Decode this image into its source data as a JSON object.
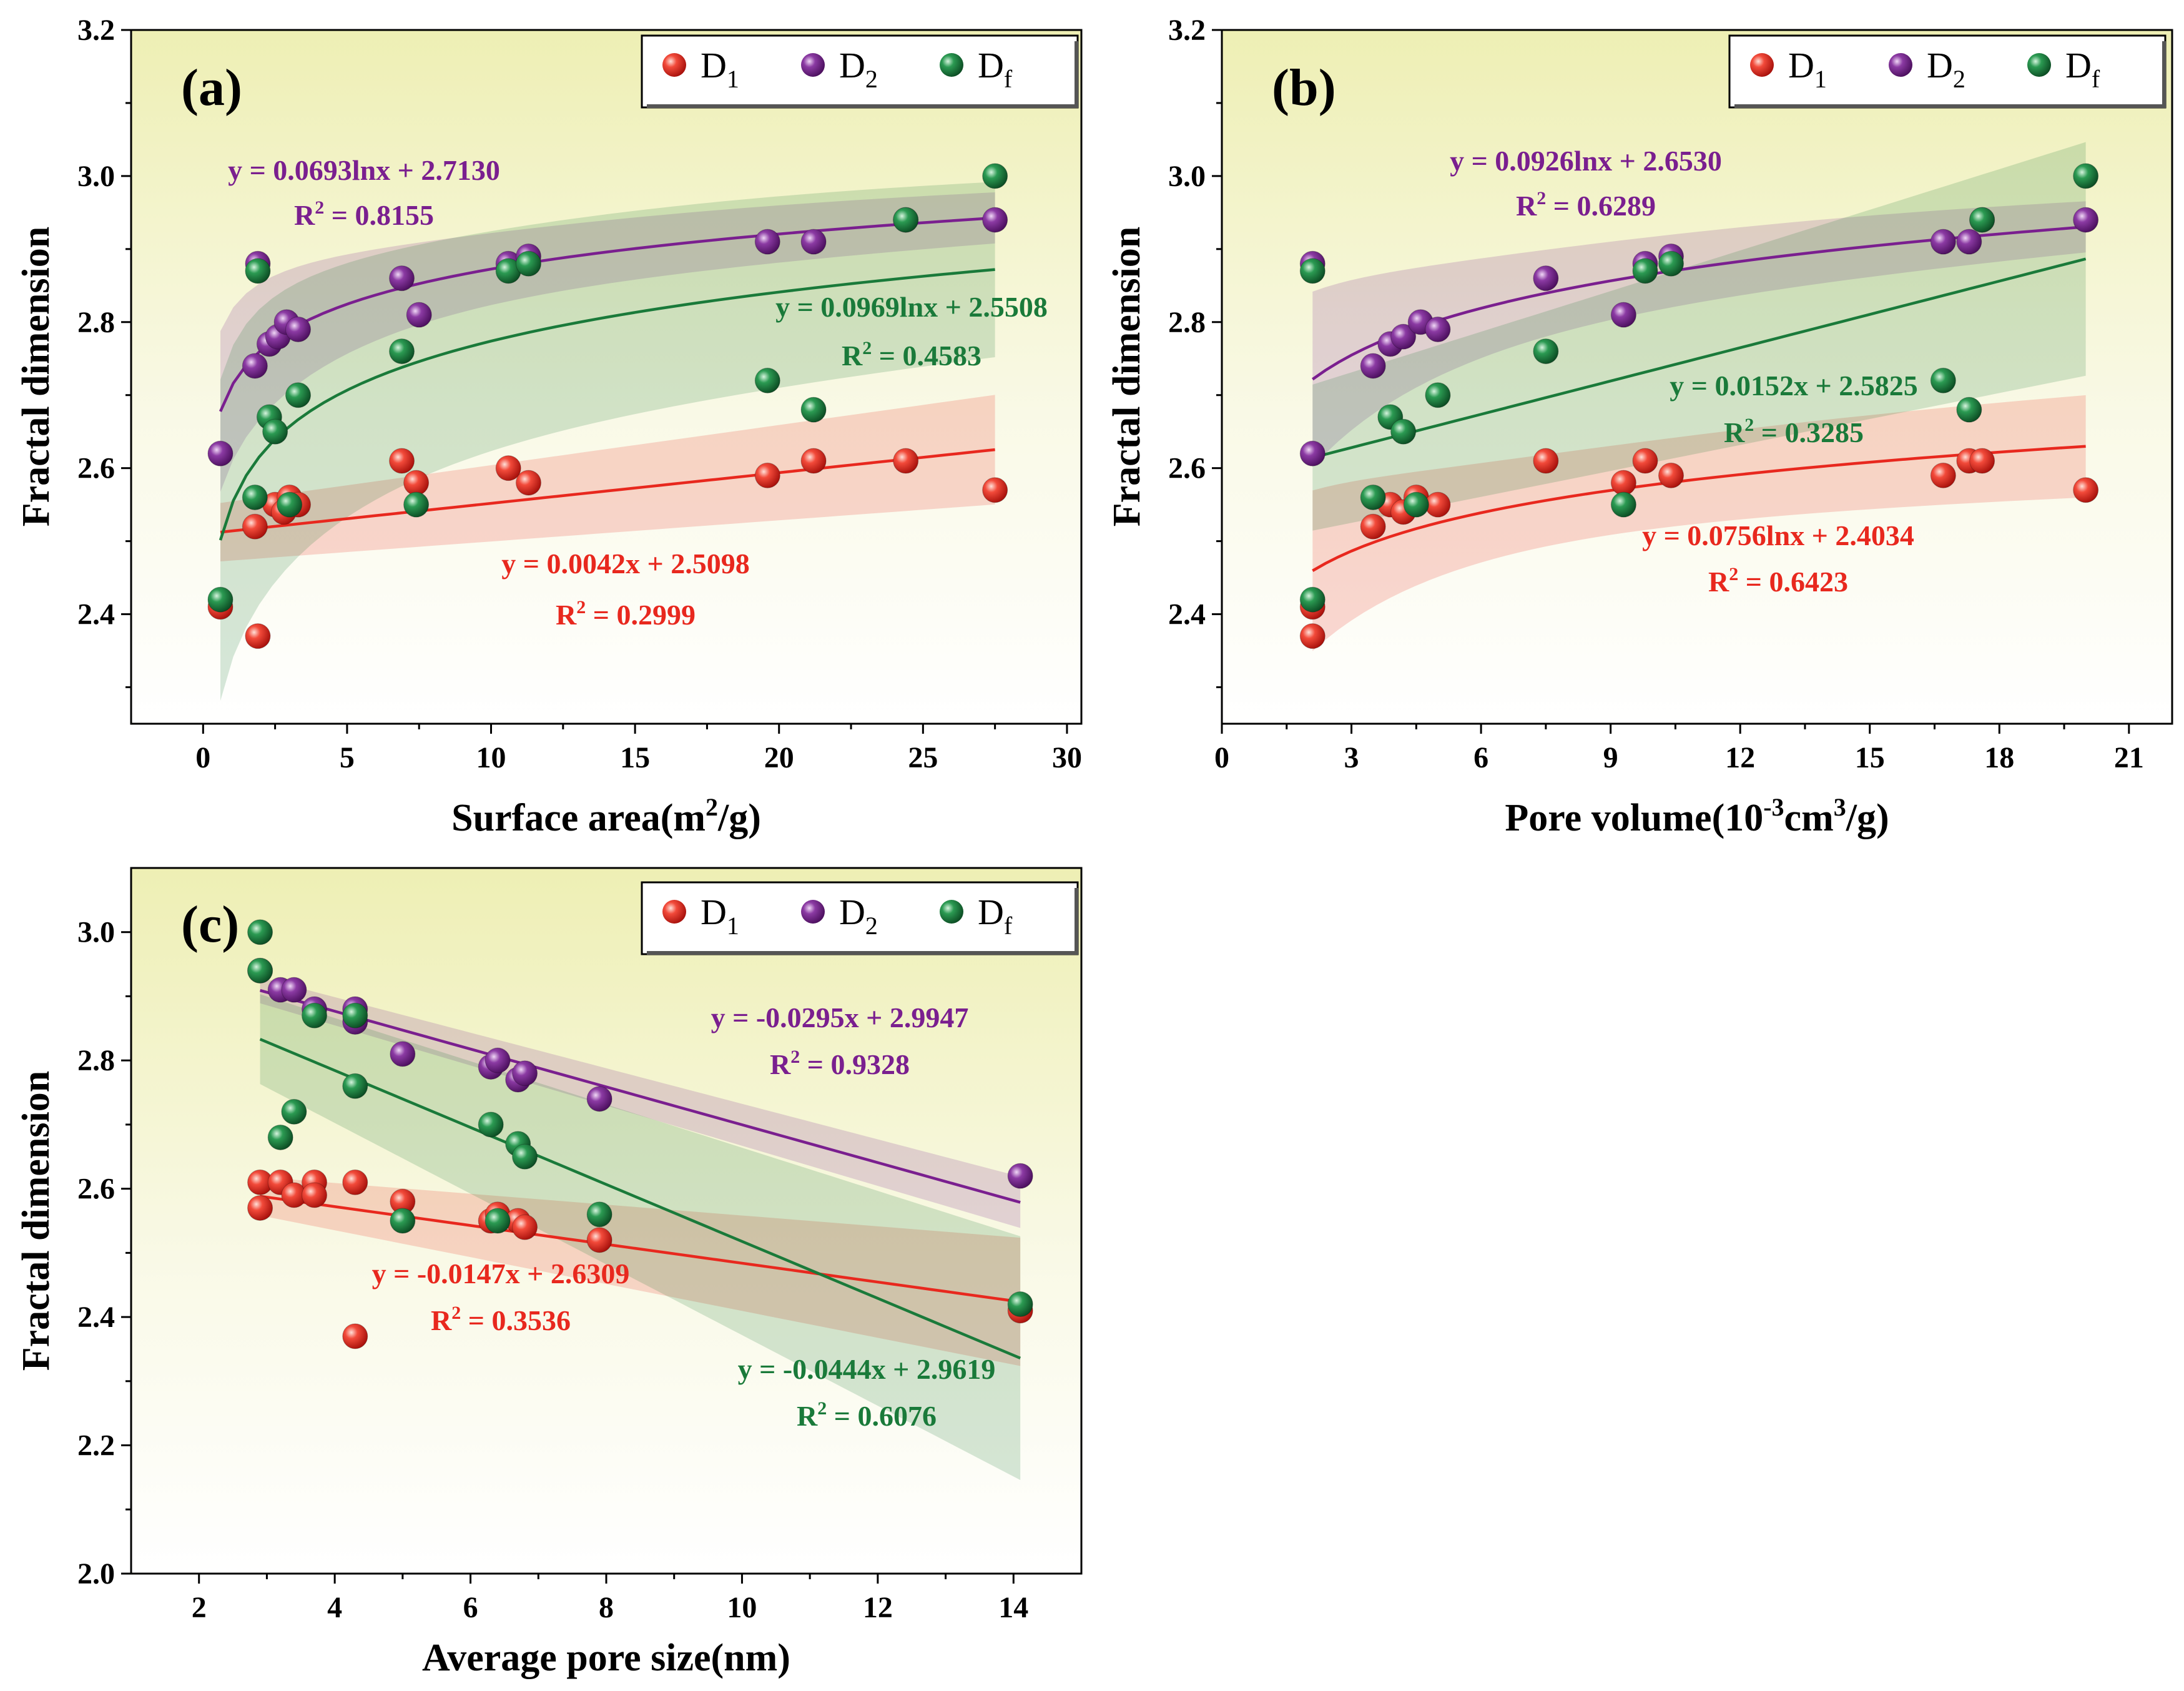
{
  "colors": {
    "D1": "#e8281e",
    "D2": "#7a1f8f",
    "Df": "#1a7a3a",
    "bg_top": "#eeefb4",
    "bg_bottom": "#ffffff"
  },
  "legend": {
    "entries": [
      {
        "key": "D1",
        "base": "D",
        "sub": "1"
      },
      {
        "key": "D2",
        "base": "D",
        "sub": "2"
      },
      {
        "key": "Df",
        "base": "D",
        "sub": "f"
      }
    ]
  },
  "chart_data": [
    {
      "type": "scatter",
      "panel": "(a)",
      "xlabel": "Surface area(m",
      "xlabel_sup": "2",
      "xlabel_tail": "/g)",
      "ylabel": "Fractal dimension",
      "xlim": [
        -2.5,
        30.5
      ],
      "ylim": [
        2.25,
        3.2
      ],
      "xticks": [
        0,
        5,
        10,
        15,
        20,
        25,
        30
      ],
      "yticks": [
        2.4,
        2.6,
        2.8,
        3.0,
        3.2
      ],
      "ytick_labels": [
        "2.4",
        "2.6",
        "2.8",
        "3.0",
        "3.2"
      ],
      "series": [
        {
          "name": "D1",
          "x": [
            0.6,
            1.8,
            1.9,
            2.5,
            2.8,
            3.0,
            3.3,
            6.9,
            7.4,
            10.6,
            11.3,
            19.6,
            21.2,
            24.4,
            27.5
          ],
          "y": [
            2.41,
            2.52,
            2.37,
            2.55,
            2.54,
            2.56,
            2.55,
            2.61,
            2.58,
            2.6,
            2.58,
            2.59,
            2.61,
            2.61,
            2.57
          ],
          "fit": {
            "form": "linear",
            "a": 0.0042,
            "b": 2.5098,
            "x0": 0.6,
            "x1": 27.5,
            "band": [
              0.04,
              0.075
            ]
          },
          "equation": "y = 0.0042x + 2.5098",
          "r2_value": " = 0.2999"
        },
        {
          "name": "D2",
          "x": [
            0.6,
            1.8,
            1.9,
            2.3,
            2.6,
            2.9,
            3.3,
            6.9,
            7.5,
            10.6,
            11.3,
            19.6,
            21.2,
            24.4,
            27.5
          ],
          "y": [
            2.62,
            2.74,
            2.88,
            2.77,
            2.78,
            2.8,
            2.79,
            2.86,
            2.81,
            2.88,
            2.89,
            2.91,
            2.91,
            2.94,
            2.94
          ],
          "fit": {
            "form": "log",
            "a": 0.0693,
            "b": 2.713,
            "x0": 0.6,
            "x1": 27.5,
            "band": [
              0.05,
              0.035
            ]
          },
          "equation": "y = 0.0693lnx + 2.7130",
          "r2_value": " = 0.8155"
        },
        {
          "name": "Df",
          "x": [
            0.6,
            1.8,
            1.9,
            2.3,
            2.5,
            3.0,
            3.3,
            6.9,
            7.4,
            10.6,
            11.3,
            19.6,
            21.2,
            24.4,
            27.5
          ],
          "y": [
            2.42,
            2.56,
            2.87,
            2.67,
            2.65,
            2.55,
            2.7,
            2.76,
            2.55,
            2.87,
            2.88,
            2.72,
            2.68,
            2.94,
            3.0
          ],
          "fit": {
            "form": "log",
            "a": 0.0969,
            "b": 2.5508,
            "x0": 0.6,
            "x1": 27.5,
            "band": [
              0.16,
              0.12
            ]
          },
          "equation": "y = 0.0969lnx + 2.5508",
          "r2_value": " = 0.4583"
        }
      ]
    },
    {
      "type": "scatter",
      "panel": "(b)",
      "xlabel": "Pore volume(10",
      "xlabel_sup": "-3",
      "xlabel_mid": "cm",
      "xlabel_sup2": "3",
      "xlabel_tail": "/g)",
      "ylabel": "Fractal dimension",
      "xlim": [
        0,
        22
      ],
      "ylim": [
        2.25,
        3.2
      ],
      "xticks": [
        0,
        3,
        6,
        9,
        12,
        15,
        18,
        21
      ],
      "yticks": [
        2.4,
        2.6,
        2.8,
        3.0,
        3.2
      ],
      "ytick_labels": [
        "2.4",
        "2.6",
        "2.8",
        "3.0",
        "3.2"
      ],
      "series": [
        {
          "name": "D1",
          "x": [
            2.1,
            2.1,
            3.5,
            3.9,
            4.2,
            4.5,
            5.0,
            7.5,
            9.3,
            9.8,
            10.4,
            16.7,
            17.3,
            17.6,
            20.0
          ],
          "y": [
            2.41,
            2.37,
            2.52,
            2.55,
            2.54,
            2.56,
            2.55,
            2.61,
            2.58,
            2.61,
            2.59,
            2.59,
            2.61,
            2.61,
            2.57
          ],
          "fit": {
            "form": "log",
            "a": 0.0756,
            "b": 2.4034,
            "x0": 2.1,
            "x1": 20.0,
            "band": [
              0.05,
              0.07
            ]
          },
          "equation": "y = 0.0756lnx + 2.4034",
          "r2_value": " = 0.6423"
        },
        {
          "name": "D2",
          "x": [
            2.1,
            2.1,
            3.5,
            3.9,
            4.2,
            4.6,
            5.0,
            7.5,
            9.3,
            9.8,
            10.4,
            16.7,
            17.3,
            17.6,
            20.0
          ],
          "y": [
            2.88,
            2.62,
            2.74,
            2.77,
            2.78,
            2.8,
            2.79,
            2.86,
            2.81,
            2.88,
            2.89,
            2.91,
            2.91,
            2.94,
            2.94
          ],
          "fit": {
            "form": "log",
            "a": 0.0926,
            "b": 2.653,
            "x0": 2.1,
            "x1": 20.0,
            "band": [
              0.06,
              0.035
            ]
          },
          "equation": "y = 0.0926lnx + 2.6530",
          "r2_value": " = 0.6289"
        },
        {
          "name": "Df",
          "x": [
            2.1,
            2.1,
            3.5,
            3.9,
            4.2,
            4.5,
            5.0,
            7.5,
            9.3,
            9.8,
            10.4,
            16.7,
            17.3,
            17.6,
            20.0
          ],
          "y": [
            2.87,
            2.42,
            2.56,
            2.67,
            2.65,
            2.55,
            2.7,
            2.76,
            2.55,
            2.87,
            2.88,
            2.72,
            2.68,
            2.94,
            3.0
          ],
          "fit": {
            "form": "linear",
            "a": 0.0152,
            "b": 2.5825,
            "x0": 2.1,
            "x1": 20.0,
            "band": [
              0.1,
              0.16
            ]
          },
          "equation": "y = 0.0152x + 2.5825",
          "r2_value": " = 0.3285"
        }
      ]
    },
    {
      "type": "scatter",
      "panel": "(c)",
      "xlabel": "Average pore size(nm)",
      "ylabel": "Fractal dimension",
      "xlim": [
        1,
        15
      ],
      "ylim": [
        2.0,
        3.1
      ],
      "xticks": [
        2,
        4,
        6,
        8,
        10,
        12,
        14
      ],
      "yticks": [
        2.0,
        2.2,
        2.4,
        2.6,
        2.8,
        3.0
      ],
      "ytick_labels": [
        "2.0",
        "2.2",
        "2.4",
        "2.6",
        "2.8",
        "3.0"
      ],
      "series": [
        {
          "name": "D1",
          "x": [
            2.9,
            2.9,
            3.2,
            3.4,
            3.7,
            3.7,
            4.3,
            4.3,
            5.0,
            6.3,
            6.4,
            6.7,
            6.8,
            7.9,
            14.1
          ],
          "y": [
            2.61,
            2.57,
            2.61,
            2.59,
            2.61,
            2.59,
            2.61,
            2.37,
            2.58,
            2.55,
            2.56,
            2.55,
            2.54,
            2.52,
            2.41
          ],
          "fit": {
            "form": "linear",
            "a": -0.0147,
            "b": 2.6309,
            "x0": 2.9,
            "x1": 14.1,
            "band": [
              0.03,
              0.1
            ]
          },
          "equation": "y = -0.0147x + 2.6309",
          "r2_value": " = 0.3536"
        },
        {
          "name": "D2",
          "x": [
            2.9,
            3.2,
            3.4,
            3.7,
            4.3,
            4.3,
            5.0,
            6.3,
            6.4,
            6.7,
            6.8,
            7.9,
            14.1
          ],
          "y": [
            2.94,
            2.91,
            2.91,
            2.88,
            2.88,
            2.86,
            2.81,
            2.79,
            2.8,
            2.77,
            2.78,
            2.74,
            2.62
          ],
          "fit": {
            "form": "linear",
            "a": -0.0295,
            "b": 2.9947,
            "x0": 2.9,
            "x1": 14.1,
            "band": [
              0.02,
              0.04
            ]
          },
          "equation": "y = -0.0295x + 2.9947",
          "r2_value": " = 0.9328"
        },
        {
          "name": "Df",
          "x": [
            2.9,
            2.9,
            3.2,
            3.4,
            3.7,
            4.3,
            4.3,
            5.0,
            6.3,
            6.4,
            6.7,
            6.8,
            7.9,
            14.1
          ],
          "y": [
            3.0,
            2.94,
            2.68,
            2.72,
            2.87,
            2.76,
            2.87,
            2.55,
            2.7,
            2.55,
            2.67,
            2.65,
            2.56,
            2.42
          ],
          "fit": {
            "form": "linear",
            "a": -0.0444,
            "b": 2.9619,
            "x0": 2.9,
            "x1": 14.1,
            "band": [
              0.07,
              0.19
            ]
          },
          "equation": "y = -0.0444x + 2.9619",
          "r2_value": " = 0.6076"
        }
      ]
    }
  ]
}
